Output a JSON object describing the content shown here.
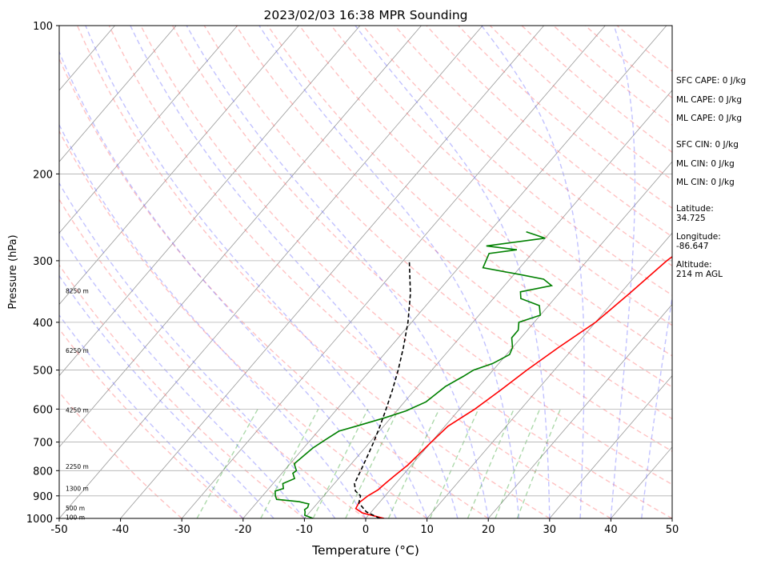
{
  "chart_data": {
    "type": "line",
    "title": "2023/02/03 16:38 MPR Sounding",
    "xlabel": "Temperature (°C)",
    "ylabel": "Pressure (hPa)",
    "xlim": [
      -50,
      50
    ],
    "ylim": [
      1000,
      100
    ],
    "yscale": "log",
    "grid": true,
    "x_ticks": [
      -50,
      -40,
      -30,
      -20,
      -10,
      0,
      10,
      20,
      30,
      40,
      50
    ],
    "y_ticks": [
      100,
      200,
      300,
      400,
      500,
      600,
      700,
      800,
      900,
      1000
    ],
    "series": [
      {
        "color": "#ff0000",
        "style": "solid",
        "points": [
          [
            3.0,
            1000
          ],
          [
            -1.3,
            975
          ],
          [
            -3.0,
            955
          ],
          [
            -3.3,
            930
          ],
          [
            -2.8,
            900
          ],
          [
            -2.0,
            875
          ],
          [
            -1.7,
            850
          ],
          [
            -1.2,
            815
          ],
          [
            -0.6,
            780
          ],
          [
            0.0,
            700
          ],
          [
            0.5,
            650
          ],
          [
            2.5,
            600
          ],
          [
            4.0,
            550
          ],
          [
            5.5,
            500
          ],
          [
            7.5,
            450
          ],
          [
            10.0,
            400
          ],
          [
            11.5,
            350
          ],
          [
            13.0,
            300
          ],
          [
            14.8,
            270
          ],
          [
            16.0,
            262
          ]
        ]
      },
      {
        "color": "#008000",
        "style": "solid",
        "points": [
          [
            -8.6,
            1000
          ],
          [
            -10.4,
            985
          ],
          [
            -10.8,
            970
          ],
          [
            -11.2,
            960
          ],
          [
            -11.0,
            950
          ],
          [
            -11.3,
            935
          ],
          [
            -13.2,
            925
          ],
          [
            -17.2,
            915
          ],
          [
            -17.9,
            900
          ],
          [
            -18.6,
            880
          ],
          [
            -17.6,
            870
          ],
          [
            -18.4,
            850
          ],
          [
            -17.2,
            830
          ],
          [
            -18.2,
            810
          ],
          [
            -18.0,
            800
          ],
          [
            -19.3,
            775
          ],
          [
            -18.5,
            720
          ],
          [
            -17.5,
            690
          ],
          [
            -16.6,
            665
          ],
          [
            -14.5,
            650
          ],
          [
            -11.0,
            625
          ],
          [
            -8.5,
            605
          ],
          [
            -6.5,
            580
          ],
          [
            -6.0,
            560
          ],
          [
            -5.5,
            540
          ],
          [
            -4.0,
            515
          ],
          [
            -3.2,
            500
          ],
          [
            -1.0,
            485
          ],
          [
            0.5,
            465
          ],
          [
            0.0,
            450
          ],
          [
            -1.5,
            430
          ],
          [
            -1.5,
            415
          ],
          [
            -2.5,
            400
          ],
          [
            0.0,
            387
          ],
          [
            -1.5,
            370
          ],
          [
            -5.5,
            358
          ],
          [
            -6.5,
            347
          ],
          [
            -2.3,
            337
          ],
          [
            -4.5,
            327
          ],
          [
            -9.0,
            320
          ],
          [
            -16.0,
            310
          ],
          [
            -17.0,
            290
          ],
          [
            -13.0,
            285
          ],
          [
            -18.5,
            280
          ],
          [
            -10.0,
            270
          ],
          [
            -14.0,
            262
          ]
        ]
      },
      {
        "color": "#000000",
        "style": "dashed",
        "points": [
          [
            2.3,
            1000
          ],
          [
            -0.8,
            970
          ],
          [
            -3.3,
            930
          ],
          [
            -4.0,
            900
          ],
          [
            -5.5,
            880
          ],
          [
            -6.7,
            850
          ],
          [
            -7.5,
            800
          ],
          [
            -8.4,
            750
          ],
          [
            -9.4,
            700
          ],
          [
            -10.6,
            650
          ],
          [
            -12.0,
            600
          ],
          [
            -13.6,
            550
          ],
          [
            -15.5,
            500
          ],
          [
            -17.8,
            450
          ],
          [
            -20.6,
            400
          ],
          [
            -24.2,
            350
          ],
          [
            -29.0,
            300
          ]
        ]
      }
    ],
    "height_labels": [
      "8250 m",
      "6250 m",
      "4250 m",
      "2250 m",
      "1300 m",
      "500 m",
      "100 m"
    ],
    "annotations": {
      "sfc_cape": "SFC CAPE: 0 J/kg",
      "ml_cape_1": "ML CAPE: 0 J/kg",
      "ml_cape_2": "ML CAPE: 0 J/kg",
      "sfc_cin": "SFC CIN: 0 J/kg",
      "ml_cin_1": "ML CIN: 0 J/kg",
      "ml_cin_2": "ML CIN: 0 J/kg",
      "latitude_label": "Latitude:",
      "latitude_value": "34.725",
      "longitude_label": "Longitude:",
      "longitude_value": "-86.647",
      "altitude_label": "Altitude:",
      "altitude_value": "214 m AGL"
    },
    "background_lines": {
      "dry_adiabat_color": "#ff6666",
      "moist_adiabat_color": "#6666ff",
      "mixing_ratio_color": "#33a02c",
      "isotherm_color": "#999999"
    }
  }
}
